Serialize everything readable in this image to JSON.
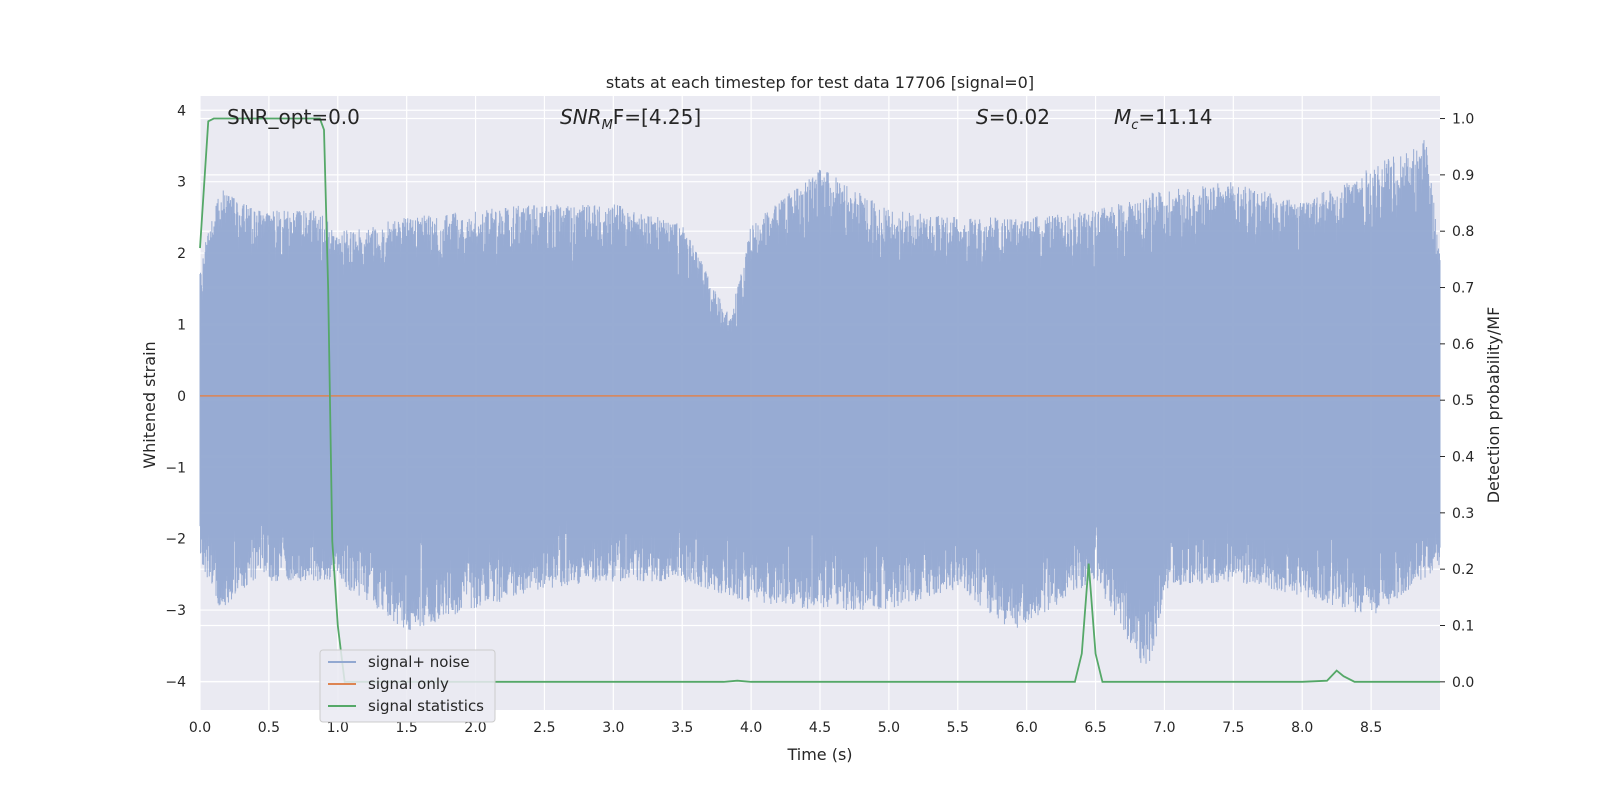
{
  "chart_data": {
    "type": "line",
    "title": "stats at each timestep for test data 17706 [signal=0]",
    "xlabel": "Time (s)",
    "ylabel_left": "Whitened strain",
    "ylabel_right": "Detection probability/MF",
    "xlim": [
      0.0,
      9.0
    ],
    "ylim_left": [
      -4.4,
      4.2
    ],
    "ylim_right": [
      -0.05,
      1.04
    ],
    "grid": true,
    "legend_location": "lower-left",
    "x_ticks": [
      "0.0",
      "0.5",
      "1.0",
      "1.5",
      "2.0",
      "2.5",
      "3.0",
      "3.5",
      "4.0",
      "4.5",
      "5.0",
      "5.5",
      "6.0",
      "6.5",
      "7.0",
      "7.5",
      "8.0",
      "8.5"
    ],
    "y_ticks_left": [
      "4",
      "3",
      "2",
      "1",
      "0",
      "−1",
      "−2",
      "−3",
      "−4"
    ],
    "y_ticks_right": [
      "1.0",
      "0.9",
      "0.8",
      "0.7",
      "0.6",
      "0.5",
      "0.4",
      "0.3",
      "0.2",
      "0.1",
      "0.0"
    ],
    "annotations": {
      "snr_opt": "SNR_opt=0.0",
      "snr_mf_main": "SNR",
      "snr_mf_sub": "M",
      "snr_mf_rest": "F=[4.25]",
      "s_main": "S",
      "s_rest": "=0.02",
      "mc_main": "M",
      "mc_sub": "c",
      "mc_rest": "=11.14"
    },
    "series": [
      {
        "name": "signal+ noise",
        "color": "#92a8d1",
        "axis": "left",
        "envelope_upper": [
          [
            0.0,
            1.9
          ],
          [
            0.15,
            2.9
          ],
          [
            0.4,
            2.6
          ],
          [
            0.85,
            2.6
          ],
          [
            1.0,
            2.3
          ],
          [
            1.5,
            2.5
          ],
          [
            2.0,
            2.6
          ],
          [
            2.5,
            2.7
          ],
          [
            3.0,
            2.7
          ],
          [
            3.5,
            2.4
          ],
          [
            3.85,
            1.1
          ],
          [
            4.0,
            2.4
          ],
          [
            4.5,
            3.2
          ],
          [
            5.0,
            2.6
          ],
          [
            5.5,
            2.5
          ],
          [
            6.0,
            2.5
          ],
          [
            6.5,
            2.6
          ],
          [
            7.0,
            2.9
          ],
          [
            7.5,
            3.0
          ],
          [
            8.0,
            2.7
          ],
          [
            8.5,
            3.2
          ],
          [
            8.9,
            3.6
          ],
          [
            9.0,
            2.0
          ]
        ],
        "envelope_lower": [
          [
            0.0,
            -2.3
          ],
          [
            0.15,
            -3.0
          ],
          [
            0.4,
            -2.6
          ],
          [
            0.85,
            -2.6
          ],
          [
            1.0,
            -2.6
          ],
          [
            1.5,
            -3.3
          ],
          [
            2.0,
            -3.0
          ],
          [
            2.5,
            -2.7
          ],
          [
            3.0,
            -2.6
          ],
          [
            3.5,
            -2.6
          ],
          [
            4.0,
            -2.9
          ],
          [
            4.5,
            -3.0
          ],
          [
            5.0,
            -3.0
          ],
          [
            5.5,
            -2.7
          ],
          [
            5.9,
            -3.3
          ],
          [
            6.5,
            -2.6
          ],
          [
            6.9,
            -4.0
          ],
          [
            7.0,
            -2.7
          ],
          [
            7.5,
            -2.6
          ],
          [
            8.0,
            -2.8
          ],
          [
            8.5,
            -3.1
          ],
          [
            9.0,
            -2.4
          ]
        ]
      },
      {
        "name": "signal only",
        "color": "#dd8452",
        "axis": "left",
        "x": [
          0.0,
          9.0
        ],
        "y": [
          0.0,
          0.0
        ]
      },
      {
        "name": "signal statistics",
        "color": "#55a868",
        "axis": "right",
        "x": [
          0.0,
          0.06,
          0.1,
          0.2,
          0.87,
          0.9,
          0.93,
          0.96,
          1.0,
          1.05,
          2.0,
          3.0,
          3.8,
          3.9,
          4.0,
          5.0,
          6.0,
          6.35,
          6.4,
          6.45,
          6.5,
          6.55,
          7.0,
          7.5,
          8.0,
          8.18,
          8.25,
          8.3,
          8.38,
          8.5,
          9.0
        ],
        "y": [
          0.77,
          0.995,
          1.0,
          1.0,
          1.0,
          0.98,
          0.7,
          0.25,
          0.1,
          0.0,
          0.0,
          0.0,
          0.0,
          0.002,
          0.0,
          0.0,
          0.0,
          0.0,
          0.05,
          0.21,
          0.05,
          0.0,
          0.0,
          0.0,
          0.0,
          0.002,
          0.02,
          0.01,
          0.0,
          0.0,
          0.0
        ]
      }
    ]
  }
}
